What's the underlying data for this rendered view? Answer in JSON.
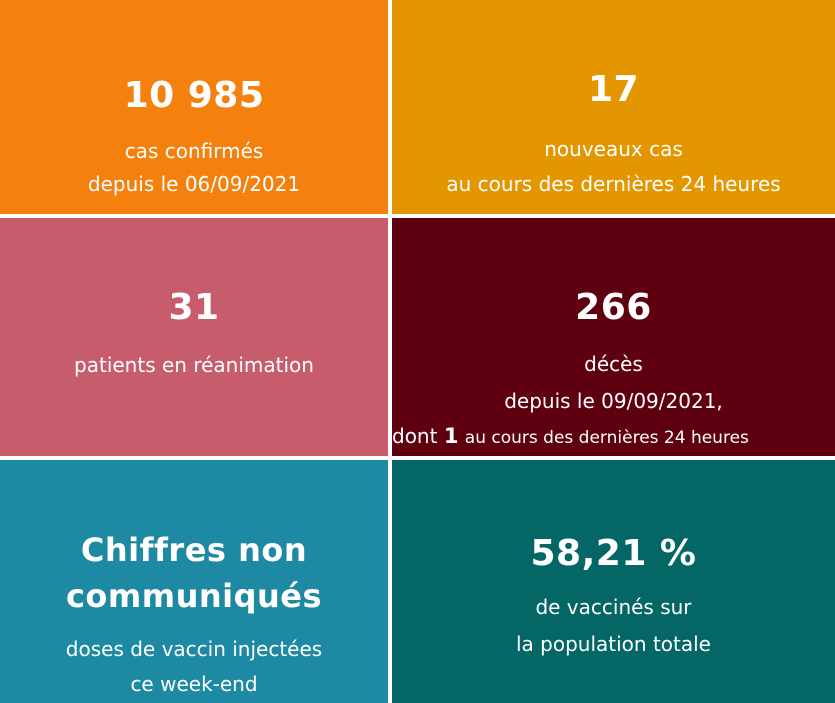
{
  "colors": {
    "orange": "#f4810e",
    "amber": "#e49600",
    "rose": "#c75c6d",
    "maroon": "#5e0010",
    "teal_blue": "#1e89a3",
    "dark_teal": "#046766"
  },
  "tiles": {
    "confirmed": {
      "value": "10 985",
      "line1": "cas confirmés",
      "line2": "depuis le 06/09/2021"
    },
    "new_cases": {
      "value": "17",
      "line1": "nouveaux cas",
      "line2": "au cours des dernières 24 heures"
    },
    "icu": {
      "value": "31",
      "line1": "patients en réanimation"
    },
    "deaths": {
      "value": "266",
      "line1": "décès",
      "line2": "depuis le 09/09/2021,",
      "line3_prefix": "dont",
      "line3_count": "1",
      "line3_suffix": "au cours des dernières 24 heures"
    },
    "doses": {
      "value_line1": "Chiffres non",
      "value_line2": "communiqués",
      "line1": "doses de vaccin injectées",
      "line2": "ce week-end"
    },
    "vaccinated": {
      "value": "58,21 %",
      "line1": "de vaccinés sur",
      "line2": "la population totale"
    }
  }
}
